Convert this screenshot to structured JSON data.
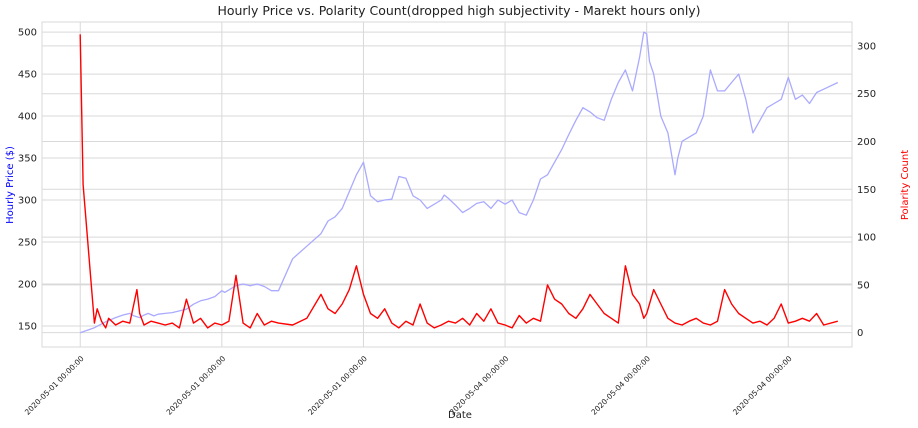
{
  "chart_data": {
    "type": "line",
    "title": "Hourly Price vs. Polarity Count(dropped high subjectivity - Marekt hours only)",
    "xlabel": "Date",
    "ylabel_left": "Hourly Price ($)",
    "ylabel_right": "Polarity Count",
    "x_tick_labels": [
      "2020-05-01 00:00:00",
      "2020-05-01 00:00:00",
      "2020-05-01 00:00:00",
      "2020-05-04 00:00:00",
      "2020-05-04 00:00:00",
      "2020-05-04 00:00:00"
    ],
    "x_tick_positions": [
      0,
      1,
      2,
      3,
      4,
      5
    ],
    "xlim": [
      -0.27,
      5.45
    ],
    "ylim_left": [
      125,
      512
    ],
    "ylim_right": [
      -15,
      325
    ],
    "y_ticks_left": [
      150,
      200,
      250,
      300,
      350,
      400,
      450,
      500
    ],
    "y_ticks_right": [
      0,
      50,
      100,
      150,
      200,
      250,
      300
    ],
    "grid": true,
    "colors": {
      "price": "#aaaaff",
      "polarity": "#ff0000",
      "left_axis_label": "#0000ff",
      "right_axis_label": "#ff0000",
      "grid": "#d9d9d9"
    },
    "series": [
      {
        "axis": "left",
        "x": [
          0.0,
          0.1,
          0.18,
          0.25,
          0.3,
          0.35,
          0.38,
          0.42,
          0.45,
          0.48,
          0.52,
          0.55,
          0.6,
          0.65,
          0.7,
          0.75,
          0.8,
          0.85,
          0.9,
          0.95,
          1.0,
          1.02,
          1.1,
          1.15,
          1.2,
          1.25,
          1.3,
          1.35,
          1.4,
          1.5,
          1.6,
          1.7,
          1.75,
          1.8,
          1.85,
          1.9,
          1.95,
          2.0,
          2.05,
          2.1,
          2.15,
          2.2,
          2.25,
          2.3,
          2.35,
          2.4,
          2.45,
          2.55,
          2.57,
          2.6,
          2.65,
          2.7,
          2.75,
          2.8,
          2.85,
          2.9,
          2.95,
          3.0,
          3.05,
          3.1,
          3.15,
          3.2,
          3.25,
          3.3,
          3.35,
          3.4,
          3.45,
          3.5,
          3.55,
          3.6,
          3.65,
          3.7,
          3.75,
          3.8,
          3.85,
          3.9,
          3.95,
          3.98,
          4.0,
          4.02,
          4.05,
          4.08,
          4.1,
          4.15,
          4.2,
          4.22,
          4.25,
          4.3,
          4.35,
          4.4,
          4.45,
          4.5,
          4.55,
          4.6,
          4.65,
          4.7,
          4.75,
          4.8,
          4.85,
          4.9,
          4.95,
          5.0,
          5.05,
          5.1,
          5.15,
          5.2,
          5.25,
          5.35
        ],
        "y": [
          142,
          148,
          155,
          160,
          163,
          165,
          162,
          160,
          163,
          165,
          162,
          164,
          165,
          166,
          168,
          170,
          176,
          180,
          182,
          185,
          192,
          190,
          198,
          200,
          198,
          200,
          197,
          192,
          192,
          230,
          245,
          260,
          275,
          280,
          290,
          310,
          330,
          345,
          305,
          298,
          300,
          301,
          328,
          326,
          305,
          300,
          290,
          300,
          306,
          302,
          294,
          285,
          290,
          296,
          298,
          290,
          300,
          295,
          300,
          285,
          282,
          300,
          325,
          330,
          345,
          360,
          378,
          395,
          410,
          405,
          398,
          395,
          420,
          440,
          455,
          430,
          470,
          500,
          498,
          465,
          450,
          420,
          400,
          380,
          330,
          350,
          370,
          375,
          380,
          400,
          455,
          430,
          430,
          440,
          450,
          420,
          380,
          395,
          410,
          415,
          420,
          446,
          420,
          425,
          415,
          428,
          432,
          440
        ]
      },
      {
        "axis": "right",
        "x": [
          0.0,
          0.02,
          0.1,
          0.12,
          0.15,
          0.18,
          0.2,
          0.25,
          0.3,
          0.35,
          0.4,
          0.42,
          0.45,
          0.5,
          0.55,
          0.6,
          0.65,
          0.7,
          0.75,
          0.8,
          0.85,
          0.9,
          0.95,
          1.0,
          1.05,
          1.1,
          1.15,
          1.2,
          1.25,
          1.3,
          1.35,
          1.4,
          1.5,
          1.6,
          1.7,
          1.75,
          1.8,
          1.85,
          1.9,
          1.95,
          2.0,
          2.05,
          2.1,
          2.15,
          2.2,
          2.25,
          2.3,
          2.35,
          2.4,
          2.45,
          2.5,
          2.55,
          2.6,
          2.65,
          2.7,
          2.75,
          2.8,
          2.85,
          2.9,
          2.95,
          3.0,
          3.05,
          3.1,
          3.15,
          3.2,
          3.25,
          3.3,
          3.35,
          3.4,
          3.45,
          3.5,
          3.55,
          3.6,
          3.65,
          3.7,
          3.75,
          3.8,
          3.85,
          3.9,
          3.95,
          3.98,
          4.0,
          4.05,
          4.1,
          4.15,
          4.2,
          4.25,
          4.3,
          4.35,
          4.4,
          4.45,
          4.5,
          4.55,
          4.6,
          4.65,
          4.7,
          4.75,
          4.8,
          4.85,
          4.9,
          4.95,
          5.0,
          5.05,
          5.1,
          5.15,
          5.2,
          5.25,
          5.35
        ],
        "y": [
          312,
          155,
          10,
          25,
          12,
          5,
          15,
          8,
          12,
          10,
          45,
          20,
          8,
          12,
          10,
          8,
          10,
          5,
          35,
          10,
          15,
          5,
          10,
          8,
          12,
          60,
          10,
          5,
          20,
          8,
          12,
          10,
          8,
          15,
          40,
          25,
          20,
          30,
          45,
          70,
          40,
          20,
          15,
          25,
          10,
          5,
          12,
          8,
          30,
          10,
          5,
          8,
          12,
          10,
          15,
          8,
          20,
          12,
          25,
          10,
          8,
          5,
          18,
          10,
          15,
          12,
          50,
          35,
          30,
          20,
          15,
          25,
          40,
          30,
          20,
          15,
          10,
          70,
          40,
          30,
          15,
          20,
          45,
          30,
          15,
          10,
          8,
          12,
          15,
          10,
          8,
          12,
          45,
          30,
          20,
          15,
          10,
          12,
          8,
          15,
          30,
          10,
          12,
          15,
          12,
          20,
          8,
          12
        ]
      }
    ]
  }
}
